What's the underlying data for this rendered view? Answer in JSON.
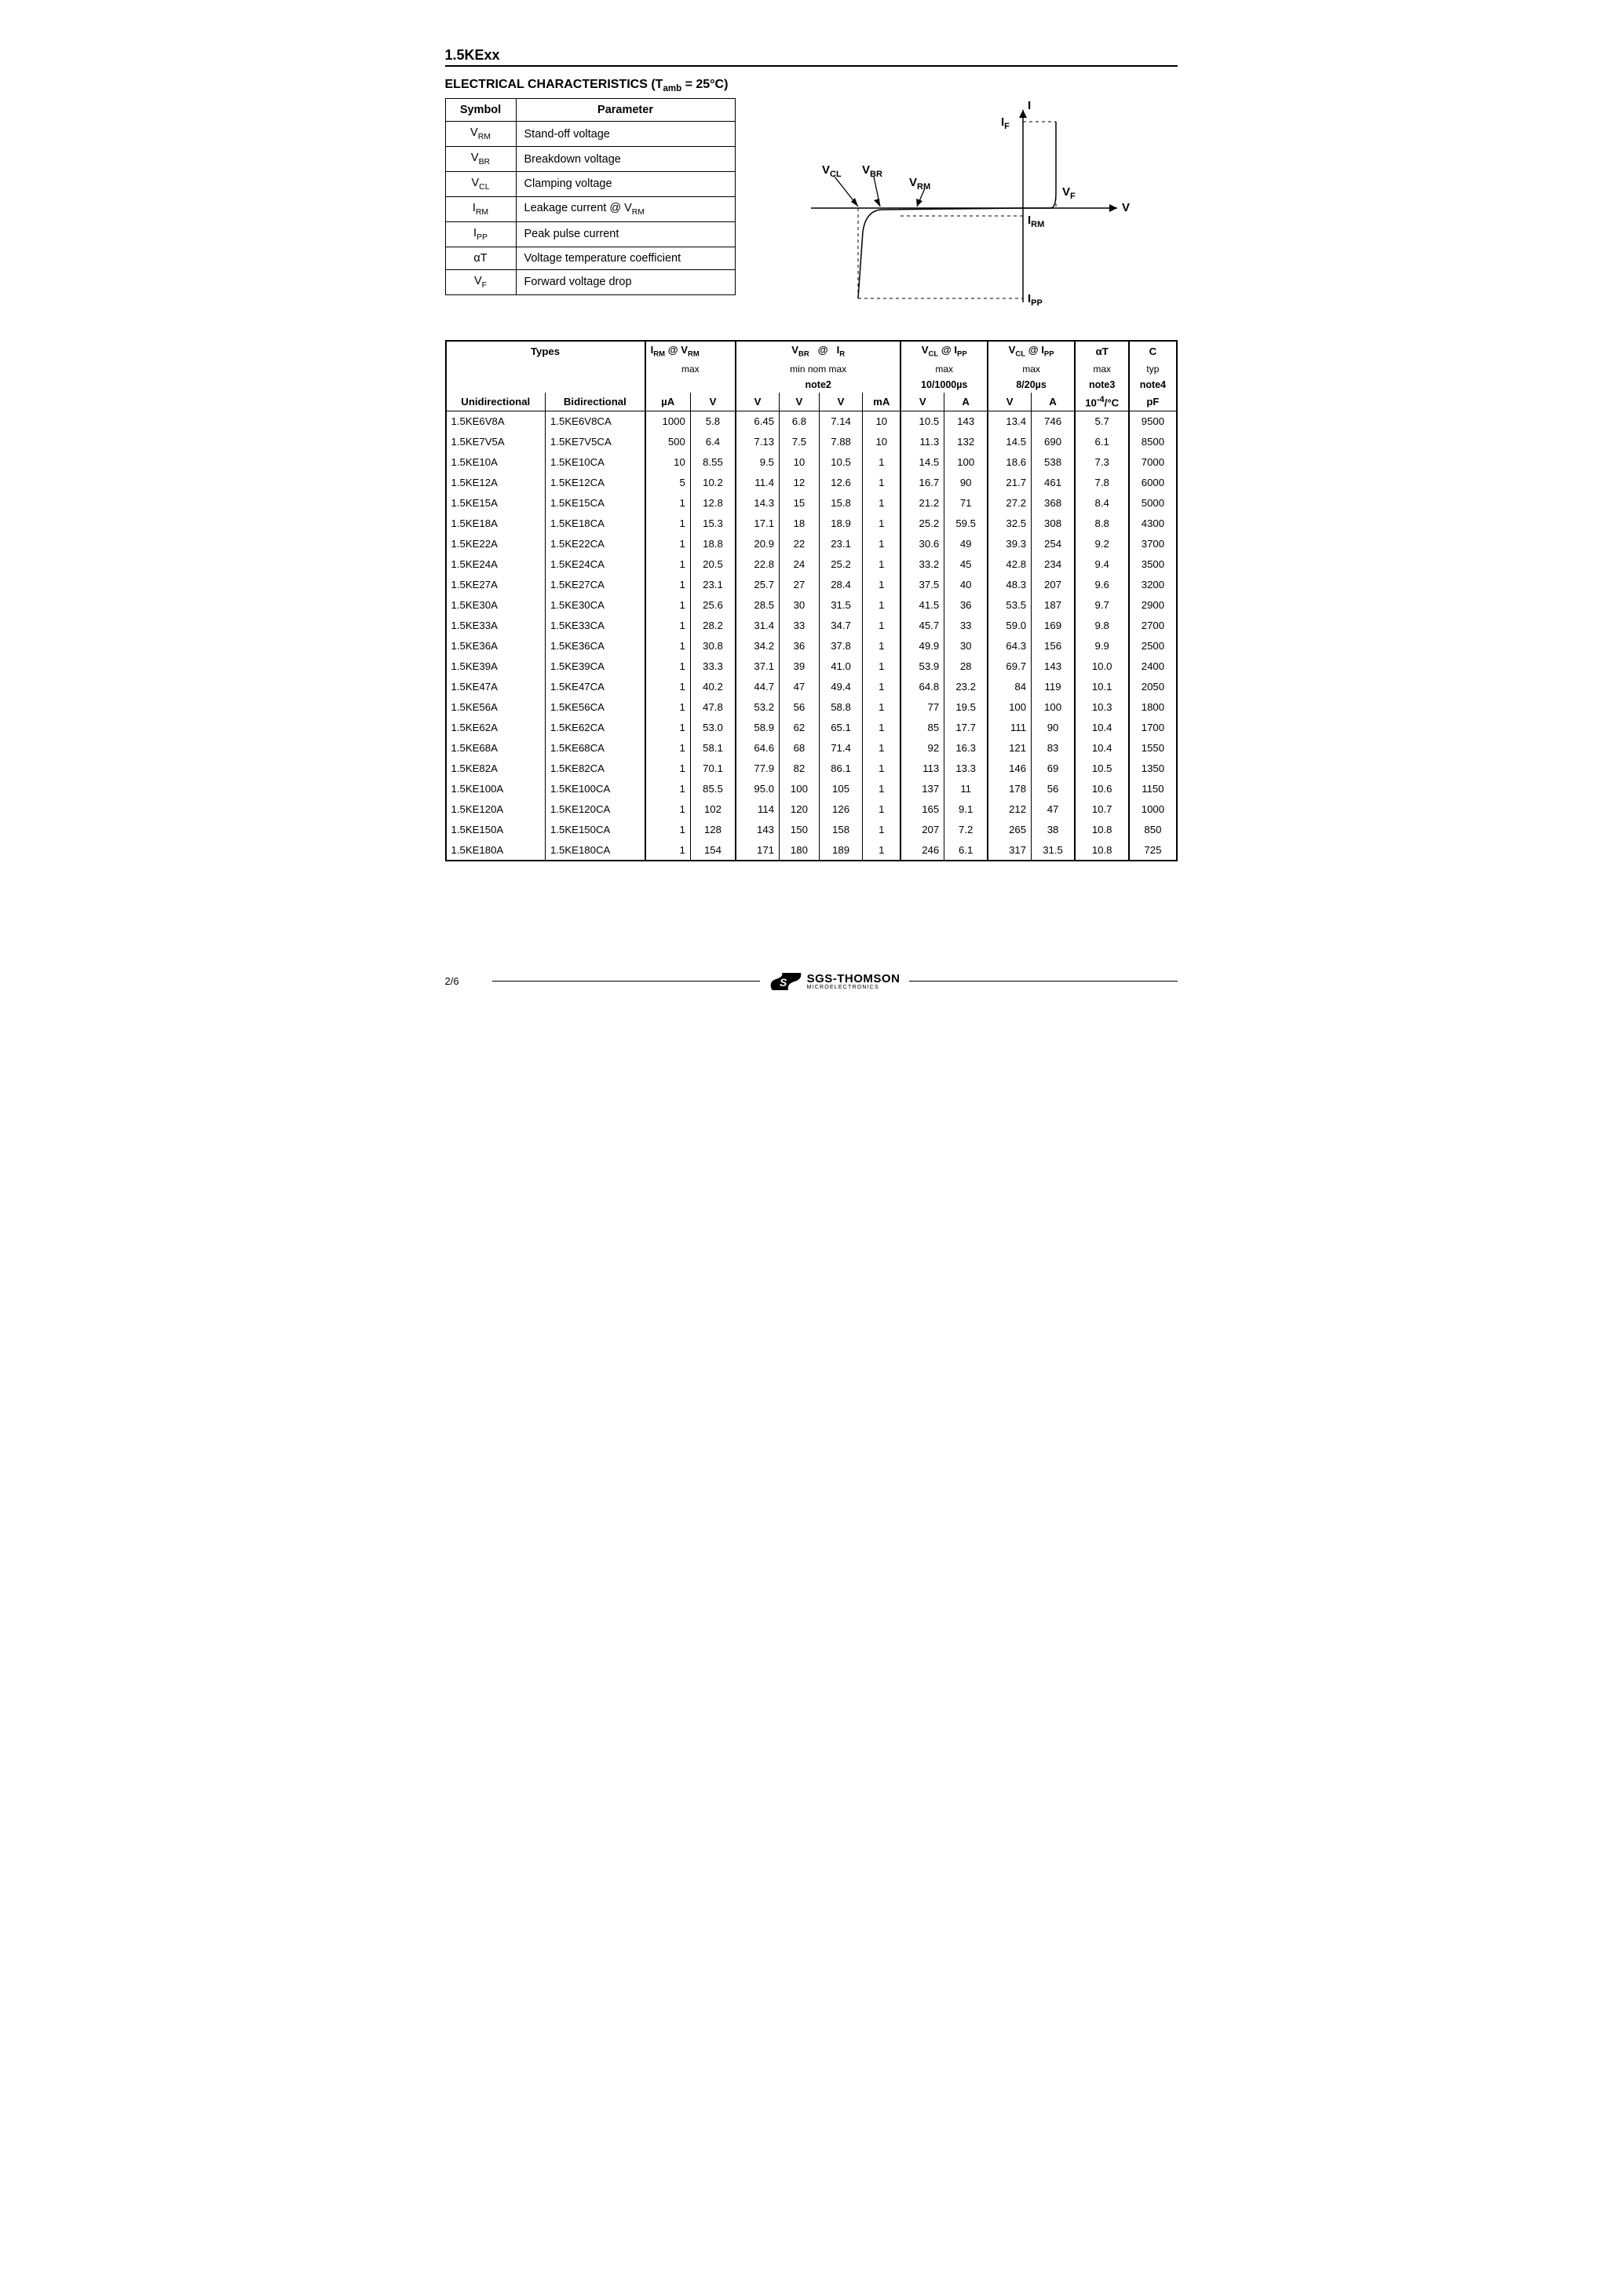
{
  "page": {
    "part_number": "1.5KExx",
    "section_title": "ELECTRICAL CHARACTERISTICS",
    "section_condition": "(T",
    "section_condition_sub": "amb",
    "section_condition_tail": " = 25°C)",
    "page_number": "2/6",
    "footer_brand": "SGS-THOMSON",
    "footer_sub": "MICROELECTRONICS"
  },
  "diagram_labels": {
    "I": "I",
    "V": "V",
    "IF": "I",
    "IF_sub": "F",
    "VF": "V",
    "VF_sub": "F",
    "VCL": "V",
    "VCL_sub": "CL",
    "VBR": "V",
    "VBR_sub": "BR",
    "VRM": "V",
    "VRM_sub": "RM",
    "IRM": "I",
    "IRM_sub": "RM",
    "IPP": "I",
    "IPP_sub": "PP"
  },
  "param_table": {
    "headers": {
      "symbol": "Symbol",
      "parameter": "Parameter"
    },
    "rows": [
      {
        "sym_main": "V",
        "sym_sub": "RM",
        "param": "Stand-off voltage"
      },
      {
        "sym_main": "V",
        "sym_sub": "BR",
        "param": "Breakdown voltage"
      },
      {
        "sym_main": "V",
        "sym_sub": "CL",
        "param": "Clamping voltage"
      },
      {
        "sym_main": "I",
        "sym_sub": "RM",
        "param": "Leakage current @ V",
        "param_sub": "RM"
      },
      {
        "sym_main": "I",
        "sym_sub": "PP",
        "param": "Peak pulse current"
      },
      {
        "sym_pre": "α",
        "sym_main": "T",
        "sym_sub": "",
        "param": "Voltage temperature coefficient"
      },
      {
        "sym_main": "V",
        "sym_sub": "F",
        "param": "Forward voltage drop"
      }
    ]
  },
  "data_table": {
    "group_headers": {
      "types": "Types",
      "irm_vrm": "I<sub>RM</sub> @ V<sub>RM</sub>",
      "vbr_ir": "V<sub>BR</sub>   @   I<sub>R</sub>",
      "vcl_ipp_1": "V<sub>CL</sub> @ I<sub>PP</sub>",
      "vcl_ipp_2": "V<sub>CL</sub> @ I<sub>PP</sub>",
      "alpha_t": "αT",
      "c": "C"
    },
    "sub_headers": {
      "irm_vrm": "max",
      "vbr_ir": "min   nom   max",
      "vcl1": "max",
      "vcl2": "max",
      "at": "max",
      "c": "typ"
    },
    "notes": {
      "vbr": "note2",
      "vcl1": "10/1000µs",
      "vcl2": "8/20µs",
      "at": "note3",
      "c": "note4"
    },
    "col_headers": {
      "uni": "Unidirectional",
      "bi": "Bidirectional",
      "ua": "µA",
      "v1": "V",
      "vmin": "V",
      "vnom": "V",
      "vmax": "V",
      "ma": "mA",
      "v2": "V",
      "a1": "A",
      "v3": "V",
      "a2": "A",
      "at_unit": "10<sup>-4</sup>/°C",
      "pf": "pF"
    },
    "rows": [
      [
        "1.5KE6V8A",
        "1.5KE6V8CA",
        "1000",
        "5.8",
        "6.45",
        "6.8",
        "7.14",
        "10",
        "10.5",
        "143",
        "13.4",
        "746",
        "5.7",
        "9500"
      ],
      [
        "1.5KE7V5A",
        "1.5KE7V5CA",
        "500",
        "6.4",
        "7.13",
        "7.5",
        "7.88",
        "10",
        "11.3",
        "132",
        "14.5",
        "690",
        "6.1",
        "8500"
      ],
      [
        "1.5KE10A",
        "1.5KE10CA",
        "10",
        "8.55",
        "9.5",
        "10",
        "10.5",
        "1",
        "14.5",
        "100",
        "18.6",
        "538",
        "7.3",
        "7000"
      ],
      [
        "1.5KE12A",
        "1.5KE12CA",
        "5",
        "10.2",
        "11.4",
        "12",
        "12.6",
        "1",
        "16.7",
        "90",
        "21.7",
        "461",
        "7.8",
        "6000"
      ],
      [
        "1.5KE15A",
        "1.5KE15CA",
        "1",
        "12.8",
        "14.3",
        "15",
        "15.8",
        "1",
        "21.2",
        "71",
        "27.2",
        "368",
        "8.4",
        "5000"
      ],
      [
        "1.5KE18A",
        "1.5KE18CA",
        "1",
        "15.3",
        "17.1",
        "18",
        "18.9",
        "1",
        "25.2",
        "59.5",
        "32.5",
        "308",
        "8.8",
        "4300"
      ],
      [
        "1.5KE22A",
        "1.5KE22CA",
        "1",
        "18.8",
        "20.9",
        "22",
        "23.1",
        "1",
        "30.6",
        "49",
        "39.3",
        "254",
        "9.2",
        "3700"
      ],
      [
        "1.5KE24A",
        "1.5KE24CA",
        "1",
        "20.5",
        "22.8",
        "24",
        "25.2",
        "1",
        "33.2",
        "45",
        "42.8",
        "234",
        "9.4",
        "3500"
      ],
      [
        "1.5KE27A",
        "1.5KE27CA",
        "1",
        "23.1",
        "25.7",
        "27",
        "28.4",
        "1",
        "37.5",
        "40",
        "48.3",
        "207",
        "9.6",
        "3200"
      ],
      [
        "1.5KE30A",
        "1.5KE30CA",
        "1",
        "25.6",
        "28.5",
        "30",
        "31.5",
        "1",
        "41.5",
        "36",
        "53.5",
        "187",
        "9.7",
        "2900"
      ],
      [
        "1.5KE33A",
        "1.5KE33CA",
        "1",
        "28.2",
        "31.4",
        "33",
        "34.7",
        "1",
        "45.7",
        "33",
        "59.0",
        "169",
        "9.8",
        "2700"
      ],
      [
        "1.5KE36A",
        "1.5KE36CA",
        "1",
        "30.8",
        "34.2",
        "36",
        "37.8",
        "1",
        "49.9",
        "30",
        "64.3",
        "156",
        "9.9",
        "2500"
      ],
      [
        "1.5KE39A",
        "1.5KE39CA",
        "1",
        "33.3",
        "37.1",
        "39",
        "41.0",
        "1",
        "53.9",
        "28",
        "69.7",
        "143",
        "10.0",
        "2400"
      ],
      [
        "1.5KE47A",
        "1.5KE47CA",
        "1",
        "40.2",
        "44.7",
        "47",
        "49.4",
        "1",
        "64.8",
        "23.2",
        "84",
        "119",
        "10.1",
        "2050"
      ],
      [
        "1.5KE56A",
        "1.5KE56CA",
        "1",
        "47.8",
        "53.2",
        "56",
        "58.8",
        "1",
        "77",
        "19.5",
        "100",
        "100",
        "10.3",
        "1800"
      ],
      [
        "1.5KE62A",
        "1.5KE62CA",
        "1",
        "53.0",
        "58.9",
        "62",
        "65.1",
        "1",
        "85",
        "17.7",
        "111",
        "90",
        "10.4",
        "1700"
      ],
      [
        "1.5KE68A",
        "1.5KE68CA",
        "1",
        "58.1",
        "64.6",
        "68",
        "71.4",
        "1",
        "92",
        "16.3",
        "121",
        "83",
        "10.4",
        "1550"
      ],
      [
        "1.5KE82A",
        "1.5KE82CA",
        "1",
        "70.1",
        "77.9",
        "82",
        "86.1",
        "1",
        "113",
        "13.3",
        "146",
        "69",
        "10.5",
        "1350"
      ],
      [
        "1.5KE100A",
        "1.5KE100CA",
        "1",
        "85.5",
        "95.0",
        "100",
        "105",
        "1",
        "137",
        "11",
        "178",
        "56",
        "10.6",
        "1150"
      ],
      [
        "1.5KE120A",
        "1.5KE120CA",
        "1",
        "102",
        "114",
        "120",
        "126",
        "1",
        "165",
        "9.1",
        "212",
        "47",
        "10.7",
        "1000"
      ],
      [
        "1.5KE150A",
        "1.5KE150CA",
        "1",
        "128",
        "143",
        "150",
        "158",
        "1",
        "207",
        "7.2",
        "265",
        "38",
        "10.8",
        "850"
      ],
      [
        "1.5KE180A",
        "1.5KE180CA",
        "1",
        "154",
        "171",
        "180",
        "189",
        "1",
        "246",
        "6.1",
        "317",
        "31.5",
        "10.8",
        "725"
      ]
    ]
  }
}
